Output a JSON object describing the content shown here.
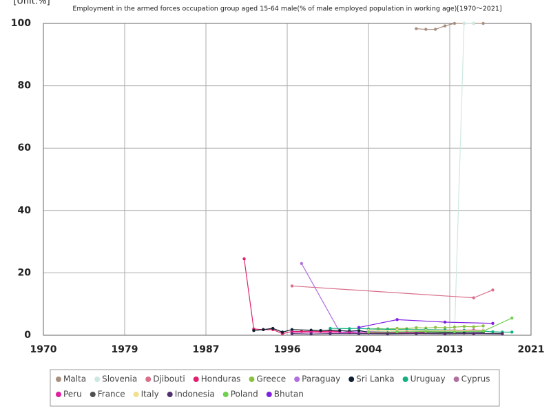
{
  "chart_data": {
    "type": "line",
    "title": "Employment in the armed forces occupation group aged 15-64 male(% of male employed population in working age)[1970～2021]",
    "unit_label": "[Unit:%]",
    "xlim": [
      1970,
      2021
    ],
    "xticks": [
      1970,
      {
        "value": 1978.5,
        "label": "1979"
      },
      1987,
      {
        "value": 1995.5,
        "label": "1996"
      },
      2004,
      {
        "value": 2012.5,
        "label": "2013"
      },
      2021
    ],
    "ylim": [
      0,
      100
    ],
    "yticks": [
      0,
      20,
      40,
      60,
      80,
      100
    ],
    "grid": true,
    "series": [
      {
        "name": "Malta",
        "color": "#a89080",
        "x": [
          2009,
          2010,
          2011,
          2012,
          2013,
          2014,
          2015,
          2016
        ],
        "values": [
          98.3,
          98.1,
          98.1,
          99.2,
          100,
          100,
          100,
          100
        ]
      },
      {
        "name": "Slovenia",
        "color": "#cde8e2",
        "x": [
          2013,
          2014,
          2015
        ],
        "values": [
          0.5,
          100,
          100
        ]
      },
      {
        "name": "Djibouti",
        "color": "#d9708a",
        "x": [
          1996,
          2015,
          2017
        ],
        "values": [
          15.8,
          12.0,
          14.5
        ]
      },
      {
        "name": "Honduras",
        "color": "#e0206a",
        "x": [
          1991,
          1992,
          1993,
          1994,
          1995,
          1996,
          1997,
          1998,
          1999,
          2000,
          2001
        ],
        "values": [
          24.5,
          2.0,
          1.8,
          1.8,
          0.5,
          1.2,
          1.2,
          1.3,
          1.2,
          1.3,
          1.2
        ]
      },
      {
        "name": "Greece",
        "color": "#8cc040",
        "x": [
          2004,
          2005,
          2006,
          2007,
          2008,
          2009,
          2010,
          2011,
          2012,
          2013,
          2014,
          2015,
          2016
        ],
        "values": [
          2.0,
          2.1,
          2.0,
          2.2,
          2.1,
          2.4,
          2.3,
          2.5,
          2.4,
          2.6,
          2.8,
          2.7,
          3.0
        ]
      },
      {
        "name": "Paraguay",
        "color": "#b070e0",
        "x": [
          1997,
          2001,
          2004,
          2007,
          2010,
          2013,
          2016
        ],
        "values": [
          23.0,
          1.0,
          1.2,
          1.0,
          1.1,
          1.0,
          1.2
        ]
      },
      {
        "name": "Sri Lanka",
        "color": "#102030",
        "x": [
          1992,
          1993,
          1994,
          1995,
          1996,
          1998,
          1999,
          2000,
          2001,
          2002,
          2003,
          2004,
          2006,
          2008,
          2010,
          2012,
          2014,
          2016
        ],
        "values": [
          1.5,
          1.8,
          2.2,
          1.0,
          1.8,
          1.6,
          1.5,
          1.6,
          1.5,
          1.3,
          1.5,
          1.0,
          0.8,
          0.9,
          1.0,
          0.8,
          0.7,
          0.8
        ]
      },
      {
        "name": "Uruguay",
        "color": "#10b080",
        "x": [
          2000,
          2002,
          2003,
          2004,
          2006,
          2008,
          2010,
          2012,
          2014,
          2016,
          2017,
          2018,
          2019
        ],
        "values": [
          2.2,
          2.1,
          2.2,
          2.0,
          1.9,
          1.8,
          1.8,
          1.7,
          1.6,
          1.3,
          1.1,
          1.0,
          1.0
        ]
      },
      {
        "name": "Cyprus",
        "color": "#b070a0",
        "x": [
          2004,
          2007,
          2010,
          2013,
          2015,
          2016
        ],
        "values": [
          1.5,
          1.6,
          1.5,
          1.6,
          1.7,
          1.6
        ]
      },
      {
        "name": "Peru",
        "color": "#e020a0",
        "x": [
          1996,
          1998,
          2000,
          2002,
          2004,
          2006,
          2008,
          2010
        ],
        "values": [
          1.0,
          0.9,
          1.0,
          0.8,
          0.7,
          0.8,
          0.9,
          0.8
        ]
      },
      {
        "name": "France",
        "color": "#505050",
        "x": [
          2003,
          2006,
          2009,
          2012,
          2015,
          2018
        ],
        "values": [
          0.5,
          0.6,
          0.6,
          0.5,
          0.5,
          0.6
        ]
      },
      {
        "name": "Italy",
        "color": "#f0e090",
        "x": [
          2004,
          2007,
          2010,
          2013,
          2016
        ],
        "values": [
          1.5,
          1.6,
          1.5,
          1.4,
          1.5
        ]
      },
      {
        "name": "Indonesia",
        "color": "#503070",
        "x": [
          1996,
          1998,
          2000,
          2003,
          2006,
          2009,
          2012,
          2015,
          2018
        ],
        "values": [
          0.5,
          0.4,
          0.5,
          0.5,
          0.4,
          0.5,
          0.4,
          0.5,
          0.4
        ]
      },
      {
        "name": "Poland",
        "color": "#70d050",
        "x": [
          2004,
          2007,
          2010,
          2013,
          2016,
          2019
        ],
        "values": [
          1.0,
          1.1,
          1.2,
          1.1,
          1.3,
          5.5
        ]
      },
      {
        "name": "Bhutan",
        "color": "#8020e0",
        "x": [
          2003,
          2007,
          2012,
          2017
        ],
        "values": [
          2.5,
          5.0,
          4.2,
          3.8
        ]
      }
    ]
  }
}
